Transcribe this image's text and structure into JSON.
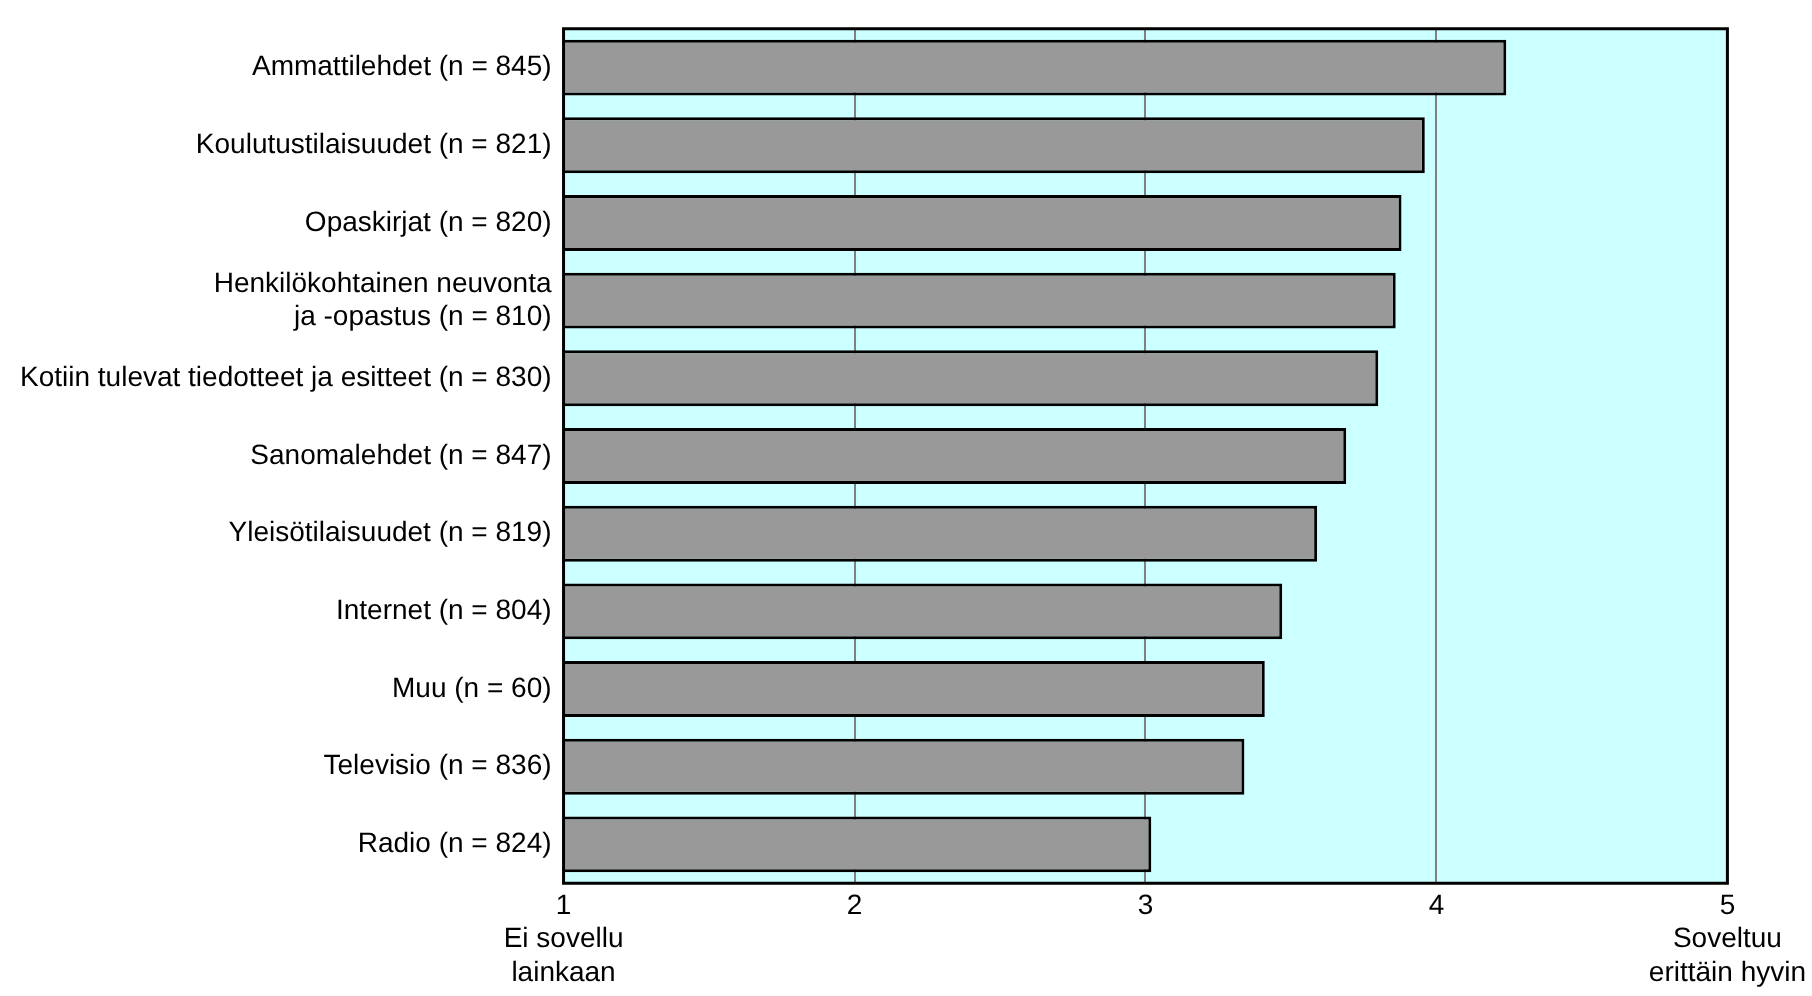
{
  "chart_data": {
    "type": "bar",
    "orientation": "horizontal",
    "categories": [
      "Ammattilehdet (n = 845)",
      "Koulutustilaisuudet (n = 821)",
      "Opaskirjat (n = 820)",
      "Henkilökohtainen neuvonta\nja -opastus (n = 810)",
      "Kotiin tulevat tiedotteet ja esitteet (n = 830)",
      "Sanomalehdet (n = 847)",
      "Yleisötilaisuudet (n = 819)",
      "Internet (n = 804)",
      "Muu (n = 60)",
      "Televisio (n = 836)",
      "Radio (n = 824)"
    ],
    "values": [
      4.24,
      3.96,
      3.88,
      3.86,
      3.8,
      3.69,
      3.59,
      3.47,
      3.41,
      3.34,
      3.02
    ],
    "color": "#999999",
    "xlim": [
      1,
      5
    ],
    "xticks": [
      {
        "value": 1,
        "label": "1\nEi sovellu\nlainkaan"
      },
      2,
      3,
      4,
      {
        "value": 5,
        "label": "5\nSoveltuu\nerittäin hyvin"
      }
    ],
    "grid": "x"
  }
}
